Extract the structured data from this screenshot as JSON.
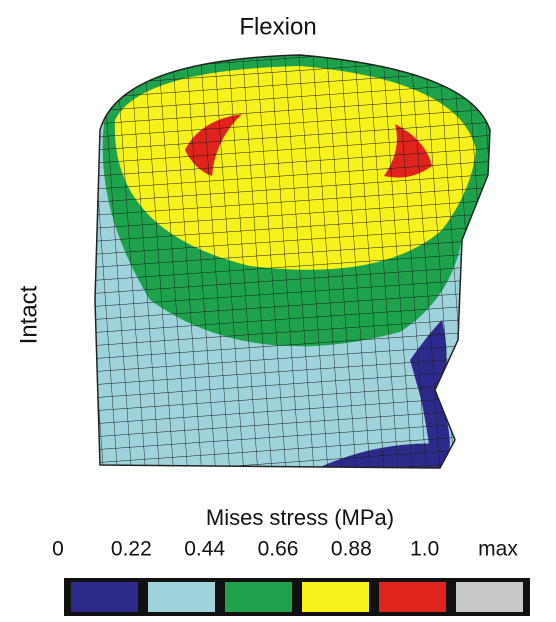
{
  "header": {
    "title": "Flexion",
    "row_label": "Intact"
  },
  "legend": {
    "title": "Mises stress (MPa)",
    "labels": [
      "0",
      "0.22",
      "0.44",
      "0.66",
      "0.88",
      "1.0",
      "max"
    ],
    "colors": [
      "#2e2a8c",
      "#9fd3dc",
      "#1ea34c",
      "#f7f21c",
      "#e0231c",
      "#c8c8c8"
    ]
  }
}
